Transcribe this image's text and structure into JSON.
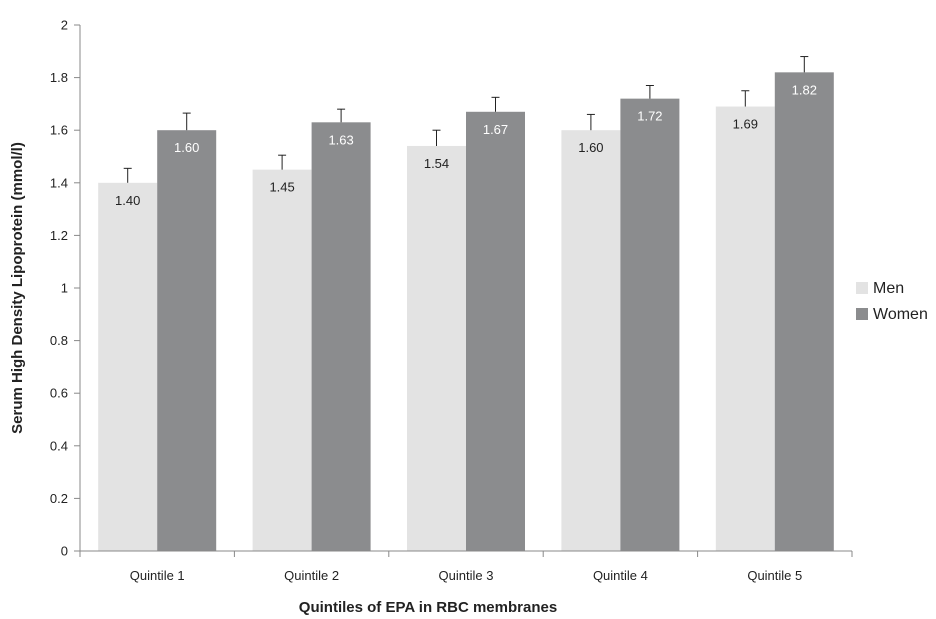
{
  "chart_data": {
    "type": "bar",
    "title": "",
    "xlabel": "Quintiles of EPA in RBC membranes",
    "ylabel": "Serum High Density Lipoprotein (mmol/l)",
    "categories": [
      "Quintile 1",
      "Quintile 2",
      "Quintile 3",
      "Quintile 4",
      "Quintile 5"
    ],
    "ylim": [
      0,
      2
    ],
    "yticks": [
      0,
      0.2,
      0.4,
      0.6,
      0.8,
      1,
      1.2,
      1.4,
      1.6,
      1.8,
      2
    ],
    "ytick_labels": [
      "0",
      "0.2",
      "0.4",
      "0.6",
      "0.8",
      "1",
      "1.2",
      "1.4",
      "1.6",
      "1.8",
      "2"
    ],
    "legend_position": "right",
    "grid": false,
    "series": [
      {
        "name": "Men",
        "color": "#e3e3e3",
        "label_color": "#222222",
        "values": [
          1.4,
          1.45,
          1.54,
          1.6,
          1.69
        ],
        "labels": [
          "1.40",
          "1.45",
          "1.54",
          "1.60",
          "1.69"
        ],
        "error_upper": [
          1.455,
          1.505,
          1.6,
          1.66,
          1.75
        ]
      },
      {
        "name": "Women",
        "color": "#8b8c8e",
        "label_color": "#ffffff",
        "values": [
          1.6,
          1.63,
          1.67,
          1.72,
          1.82
        ],
        "labels": [
          "1.60",
          "1.63",
          "1.67",
          "1.72",
          "1.82"
        ],
        "error_upper": [
          1.665,
          1.68,
          1.725,
          1.77,
          1.88
        ]
      }
    ]
  }
}
